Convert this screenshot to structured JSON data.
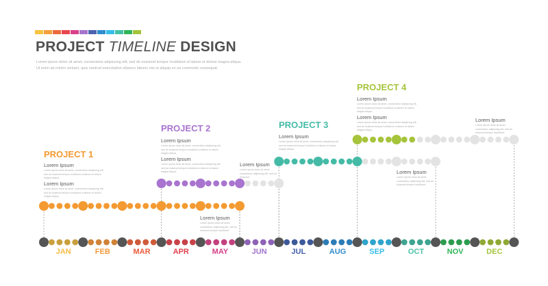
{
  "header": {
    "swatch_colors": [
      "#f7c23e",
      "#f5a03a",
      "#ee6a3b",
      "#e8474d",
      "#d9418a",
      "#a774cc",
      "#4d63ad",
      "#2f8ccd",
      "#35bdea",
      "#45c0a7",
      "#2fb55a",
      "#a4c43a"
    ],
    "title_bold_1": "PROJECT",
    "title_italic": "TIMELINE",
    "title_bold_2": "DESIGN",
    "subtitle_line_1": "Lorem ipsum dolor sit amet, consectetur adipiscing elit, sed do eiusmod tempor incididunt ut labore et dolore magna aliqua.",
    "subtitle_line_2": "Ut enim ad minim veniam, quis nostrud exercitation ullamco laboris nisi ut aliquip ex ea commodo consequat."
  },
  "months": [
    {
      "label": "JAN",
      "color": "#f5bd45",
      "dot": "#c9a03e"
    },
    {
      "label": "FEB",
      "color": "#f39a3d",
      "dot": "#d08237"
    },
    {
      "label": "MAR",
      "color": "#ea5a3b",
      "dot": "#cf5a3a"
    },
    {
      "label": "APR",
      "color": "#e23f4c",
      "dot": "#c8424a"
    },
    {
      "label": "MAY",
      "color": "#d8418a",
      "dot": "#c2417e"
    },
    {
      "label": "JUN",
      "color": "#a274cc",
      "dot": "#8d63b7"
    },
    {
      "label": "JUL",
      "color": "#4362aa",
      "dot": "#3d5999"
    },
    {
      "label": "AUG",
      "color": "#2f8bcc",
      "dot": "#2c7cb6"
    },
    {
      "label": "SEP",
      "color": "#35bde9",
      "dot": "#2fa4cc"
    },
    {
      "label": "OCT",
      "color": "#49c1a8",
      "dot": "#3fa491"
    },
    {
      "label": "NOV",
      "color": "#2fb55a",
      "dot": "#2c9c4f"
    },
    {
      "label": "DEC",
      "color": "#a4c43a",
      "dot": "#8fa935"
    }
  ],
  "milestone_color": "#555555",
  "planned_color": "#e3e3e3",
  "projects": [
    {
      "name": "PROJECT  1",
      "color": "#f39a32",
      "start_month": 0,
      "done_until": 5,
      "planned_until": 5,
      "notes": [
        {
          "heading": "Lorem Ipsum",
          "text": "Lorem ipsum dolor sit amet, consectetur adipiscing elit, sed do eiusmod tempor incididunt ut labore et dolore magna aliqua."
        },
        {
          "heading": "Lorem Ipsum",
          "text": "Lorem ipsum dolor sit amet, consectetur adipiscing elit, sed do eiusmod tempor incididunt ut labore et dolore magna aliqua."
        }
      ],
      "side_note": {
        "heading": "Lorem Ipsum",
        "text": "Lorem ipsum dolor sit amet, consectetur adipiscing elit, sed do eiusmod tempor incididunt."
      }
    },
    {
      "name": "PROJECT  2",
      "color": "#a874d0",
      "start_month": 3,
      "done_until": 5,
      "planned_until": 6,
      "notes": [
        {
          "heading": "Lorem Ipsum",
          "text": "Lorem ipsum dolor sit amet, consectetur adipiscing elit, sed do eiusmod tempor incididunt ut labore et dolore magna aliqua."
        },
        {
          "heading": "Lorem Ipsum",
          "text": "Lorem ipsum dolor sit amet, consectetur adipiscing elit, sed do eiusmod tempor incididunt ut labore et dolore magna aliqua."
        }
      ],
      "side_note": {
        "heading": "Lorem Ipsum",
        "text": "Lorem ipsum dolor sit amet, consectetur adipiscing elit, sed do eiusmod."
      }
    },
    {
      "name": "PROJECT  3",
      "color": "#45bba7",
      "start_month": 6,
      "done_until": 8,
      "planned_until": 10,
      "notes": [
        {
          "heading": "Lorem Ipsum",
          "text": "Lorem ipsum dolor sit amet, consectetur adipiscing elit, sed do eiusmod tempor incididunt ut labore et dolore magna aliqua."
        }
      ],
      "side_note": {
        "heading": "Lorem Ipsum",
        "text": "Lorem ipsum dolor sit amet, consectetur adipiscing elit, sed do eiusmod tempor incididunt."
      }
    },
    {
      "name": "PROJECT 4",
      "color": "#a6c43b",
      "start_month": 8,
      "done_until": 9.4,
      "planned_until": 12,
      "notes": [
        {
          "heading": "Lorem Ipsum",
          "text": "Lorem ipsum dolor sit amet, consectetur adipiscing elit, sed do eiusmod tempor incididunt ut labore et dolore magna aliqua."
        },
        {
          "heading": "Lorem Ipsum",
          "text": "Lorem ipsum dolor sit amet, consectetur adipiscing elit, sed do eiusmod tempor incididunt ut labore et dolore magna aliqua."
        }
      ],
      "side_note": {
        "heading": "Lorem Ipsum",
        "text": "Lorem ipsum dolor sit amet, consectetur adipiscing elit, sed do eiusmod tempor incididunt."
      }
    }
  ]
}
